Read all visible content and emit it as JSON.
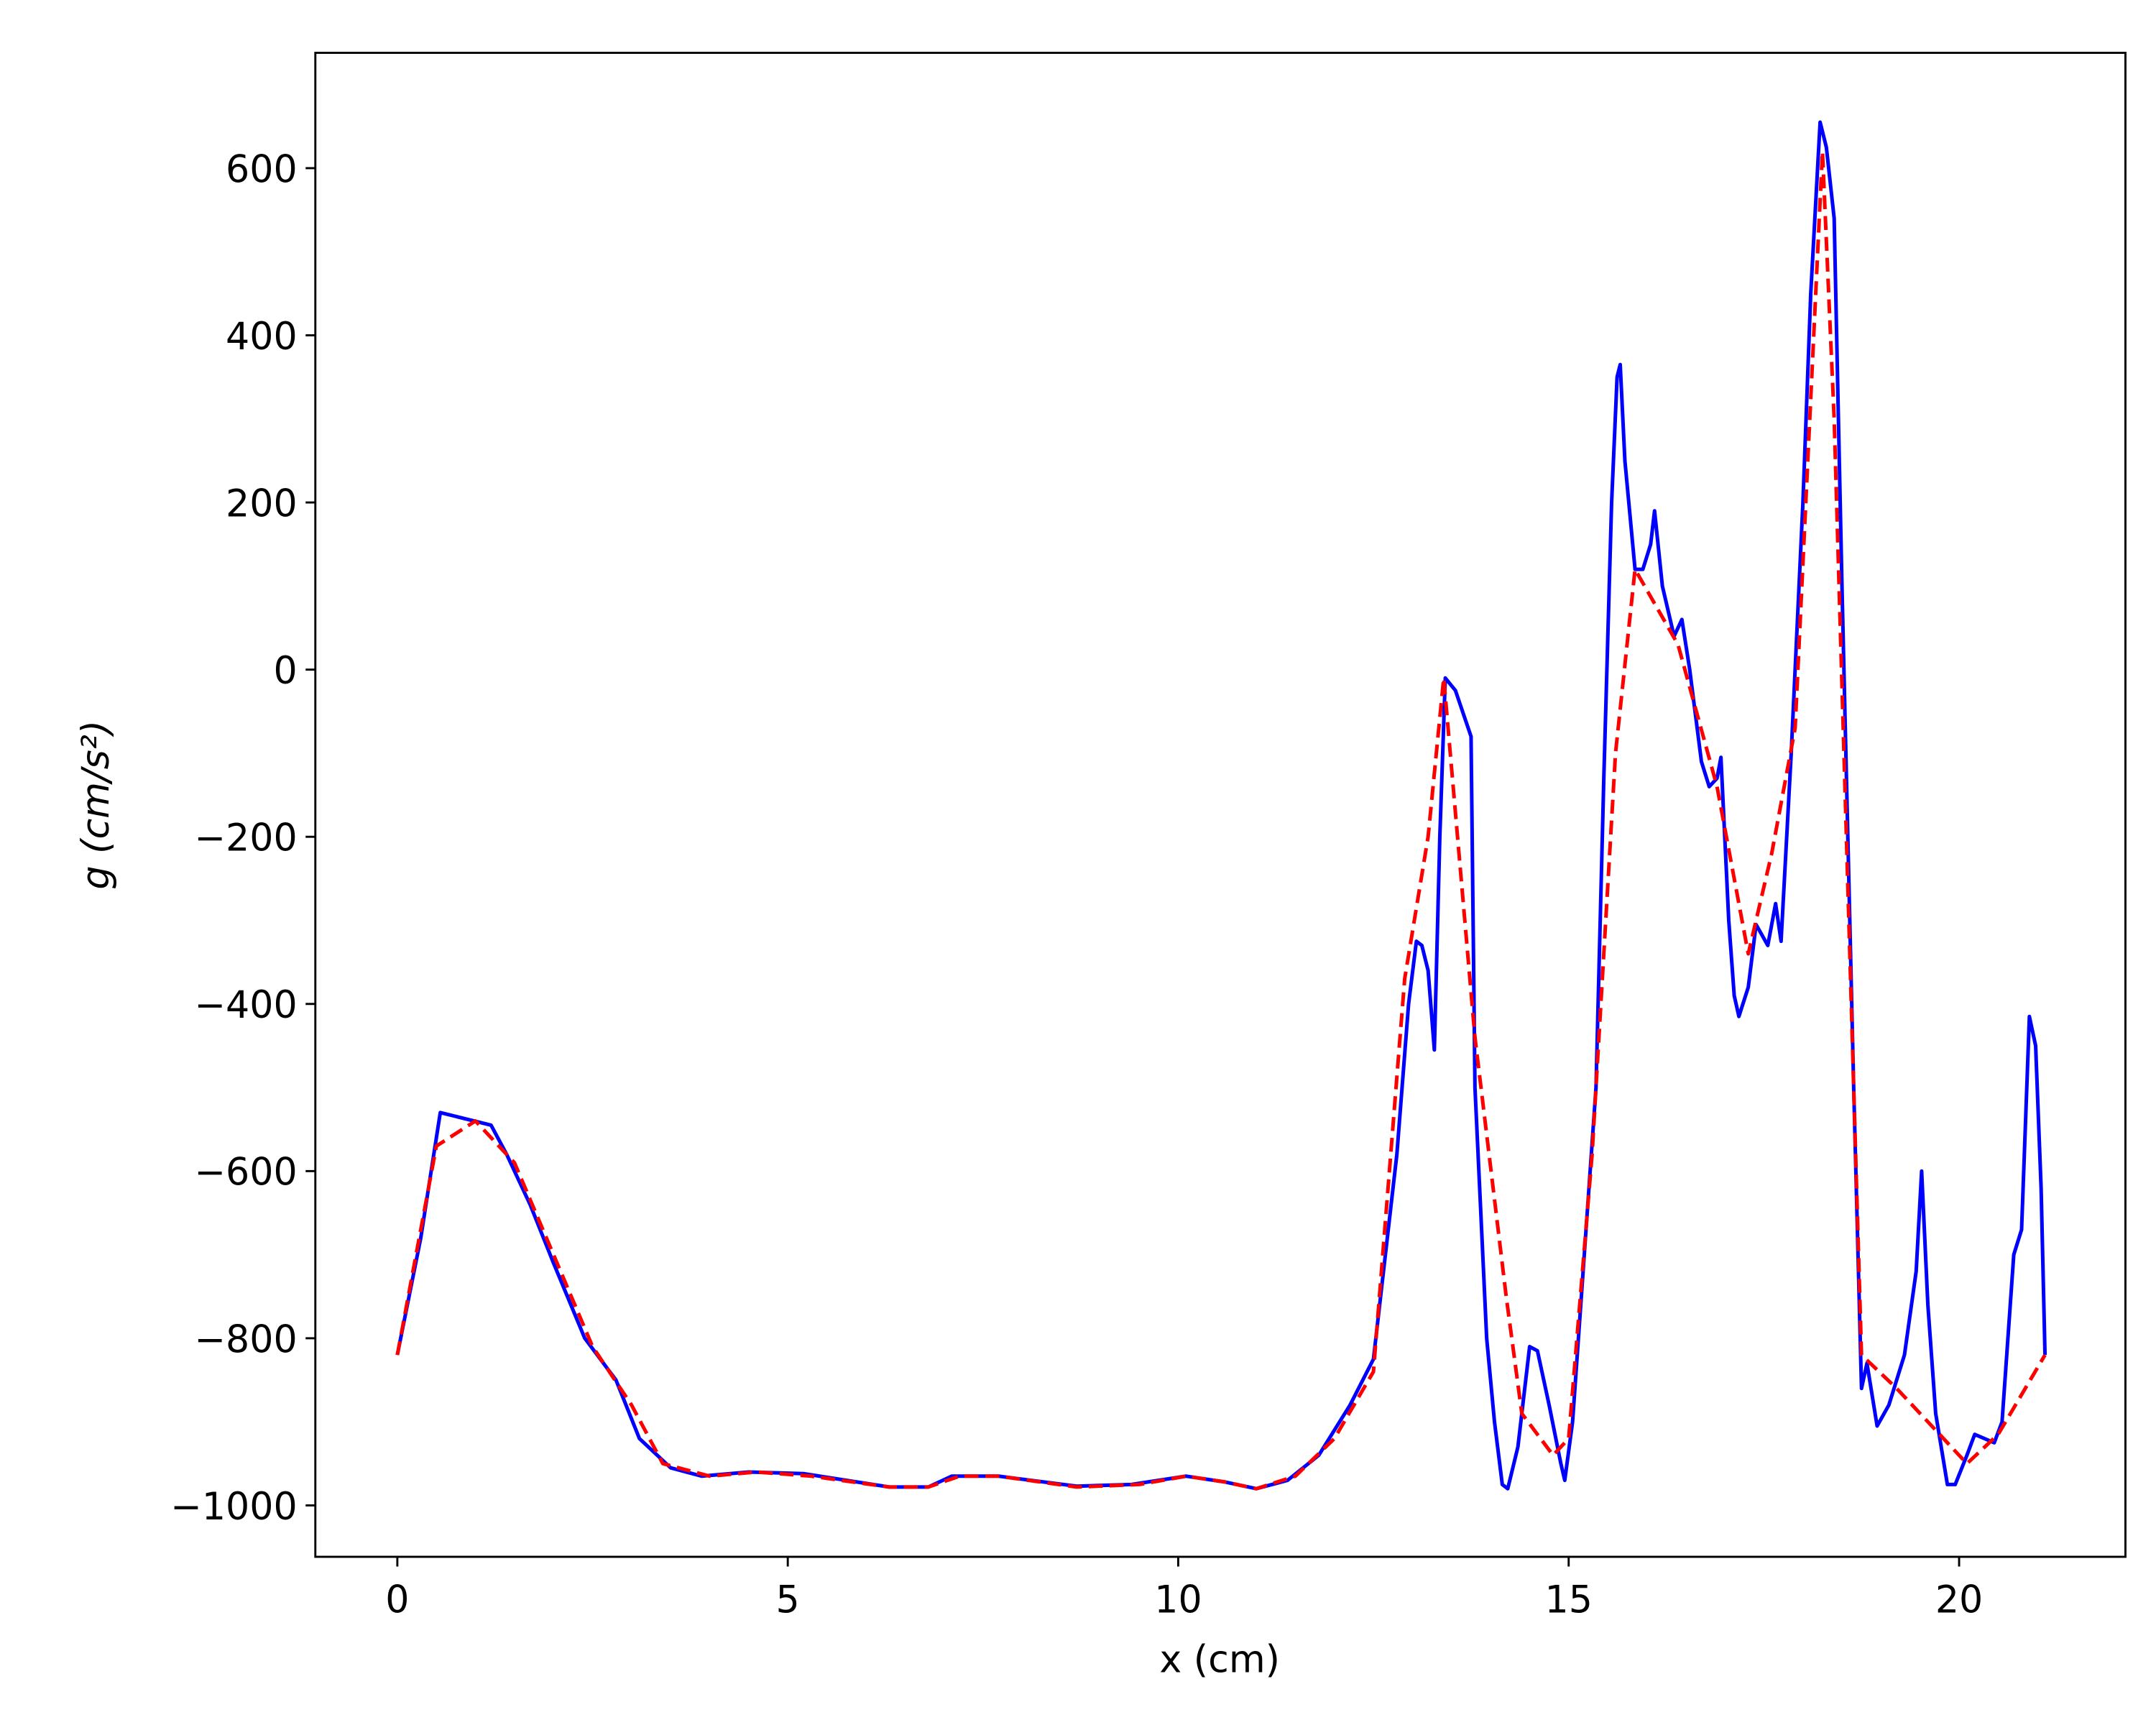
{
  "chart_data": {
    "type": "line",
    "xlabel": "x (cm)",
    "ylabel": "g (cm/s²)",
    "xlim": [
      -1.05,
      22.13
    ],
    "ylim": [
      -1061.5,
      738
    ],
    "xticks": [
      0,
      5,
      10,
      15,
      20
    ],
    "yticks": [
      {
        "value": -1000,
        "label": "−1000"
      },
      {
        "value": -800,
        "label": "−800"
      },
      {
        "value": -600,
        "label": "−600"
      },
      {
        "value": -400,
        "label": "−400"
      },
      {
        "value": -200,
        "label": "−200"
      },
      0,
      200,
      400,
      600
    ],
    "series": [
      {
        "color": "#0000ff",
        "dash": "solid",
        "x": [
          0,
          0.3,
          0.55,
          1.2,
          1.4,
          1.7,
          2.0,
          2.4,
          2.8,
          3.1,
          3.5,
          3.9,
          4.5,
          5.2,
          6.3,
          6.8,
          7.1,
          7.7,
          8.7,
          9.4,
          10.1,
          10.6,
          11.0,
          11.4,
          11.8,
          12.2,
          12.5,
          12.8,
          12.95,
          13.05,
          13.12,
          13.2,
          13.28,
          13.35,
          13.42,
          13.55,
          13.75,
          13.8,
          13.95,
          14.05,
          14.15,
          14.22,
          14.35,
          14.5,
          14.6,
          14.75,
          14.9,
          14.95,
          15.05,
          15.2,
          15.35,
          15.45,
          15.55,
          15.62,
          15.66,
          15.72,
          15.85,
          15.95,
          16.05,
          16.1,
          16.2,
          16.35,
          16.45,
          16.55,
          16.7,
          16.8,
          16.9,
          16.95,
          17.05,
          17.12,
          17.18,
          17.3,
          17.4,
          17.55,
          17.65,
          17.72,
          17.85,
          18.0,
          18.1,
          18.22,
          18.3,
          18.4,
          18.5,
          18.65,
          18.75,
          18.82,
          18.95,
          19.1,
          19.3,
          19.45,
          19.52,
          19.6,
          19.7,
          19.85,
          19.95,
          20.1,
          20.2,
          20.45,
          20.55,
          20.7,
          20.8,
          20.9,
          20.98,
          21.05,
          21.1
        ],
        "values": [
          -820,
          -680,
          -530,
          -545,
          -580,
          -640,
          -710,
          -800,
          -850,
          -920,
          -955,
          -965,
          -960,
          -962,
          -978,
          -978,
          -965,
          -965,
          -977,
          -975,
          -965,
          -972,
          -980,
          -970,
          -940,
          -880,
          -825,
          -580,
          -400,
          -325,
          -330,
          -360,
          -455,
          -200,
          -10,
          -25,
          -80,
          -500,
          -800,
          -900,
          -975,
          -980,
          -930,
          -810,
          -815,
          -880,
          -950,
          -970,
          -900,
          -700,
          -500,
          -130,
          200,
          350,
          365,
          250,
          120,
          120,
          150,
          190,
          100,
          40,
          60,
          0,
          -110,
          -140,
          -130,
          -105,
          -300,
          -390,
          -415,
          -380,
          -305,
          -330,
          -280,
          -325,
          -100,
          200,
          450,
          655,
          625,
          540,
          100,
          -500,
          -860,
          -830,
          -905,
          -880,
          -820,
          -720,
          -600,
          -760,
          -890,
          -975,
          -975,
          -940,
          -915,
          -925,
          -900,
          -700,
          -670,
          -415,
          -450,
          -620,
          -820
        ]
      },
      {
        "color": "#ff0000",
        "dash": "dashed",
        "x": [
          0,
          0.5,
          1.0,
          1.5,
          2.0,
          2.5,
          3.0,
          3.4,
          4.0,
          4.6,
          5.3,
          6.3,
          6.8,
          7.2,
          7.7,
          8.7,
          9.5,
          10.1,
          10.6,
          11.0,
          11.5,
          12.0,
          12.5,
          12.9,
          13.2,
          13.4,
          13.8,
          14.2,
          14.4,
          14.8,
          15.0,
          15.3,
          15.6,
          15.85,
          16.4,
          16.9,
          17.3,
          17.6,
          17.9,
          18.25,
          18.4,
          18.75,
          19.2,
          19.6,
          20.1,
          20.5,
          21.1
        ],
        "values": [
          -820,
          -570,
          -540,
          -590,
          -700,
          -810,
          -880,
          -950,
          -965,
          -960,
          -965,
          -978,
          -978,
          -965,
          -965,
          -978,
          -975,
          -965,
          -972,
          -980,
          -965,
          -920,
          -840,
          -370,
          -200,
          -10,
          -440,
          -750,
          -890,
          -940,
          -920,
          -580,
          -100,
          120,
          30,
          -140,
          -340,
          -220,
          -70,
          620,
          300,
          -820,
          -860,
          -900,
          -950,
          -915,
          -820
        ]
      }
    ]
  }
}
